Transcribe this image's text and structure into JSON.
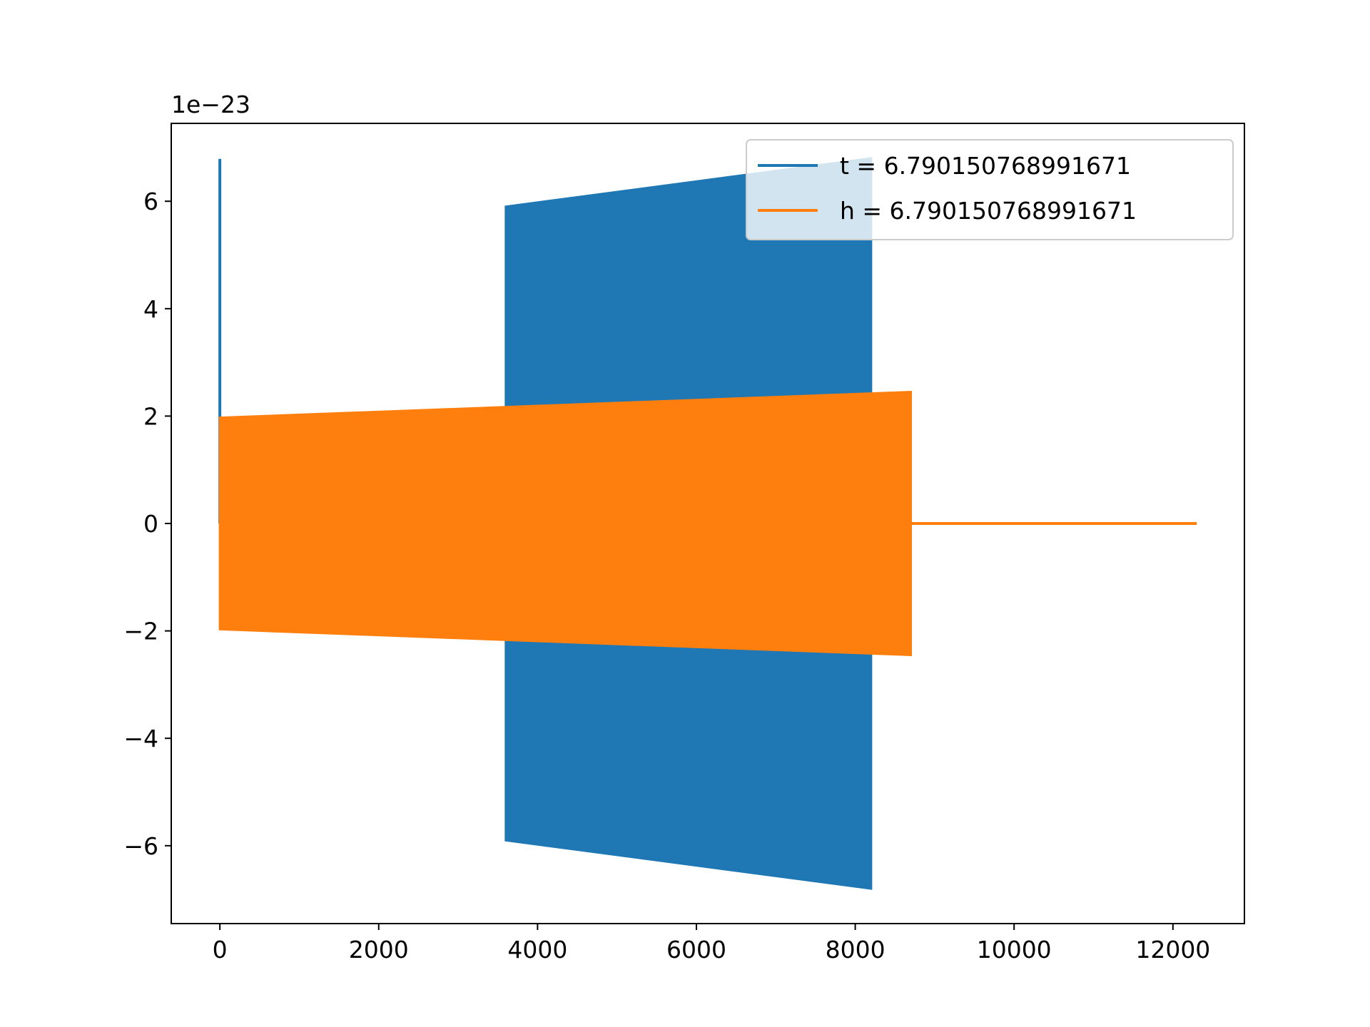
{
  "chart_data": {
    "type": "line",
    "title": "",
    "xlabel": "",
    "ylabel": "",
    "offset_text": "1e−23",
    "xlim": [
      -612,
      12900
    ],
    "ylim": [
      -7.45,
      7.45
    ],
    "xticks": [
      0,
      2000,
      4000,
      6000,
      8000,
      10000,
      12000
    ],
    "xtick_labels": [
      "0",
      "2000",
      "4000",
      "6000",
      "8000",
      "10000",
      "12000"
    ],
    "yticks": [
      -6,
      -4,
      -2,
      0,
      2,
      4,
      6
    ],
    "ytick_labels": [
      "−6",
      "−4",
      "−2",
      "0",
      "2",
      "4",
      "6"
    ],
    "grid": false,
    "legend": {
      "placement": "upper right"
    },
    "series": [
      {
        "name": "t = 6.790150768991671",
        "color": "#1f77b4",
        "spike": {
          "x": 0,
          "y_max": 6.79
        },
        "envelope": {
          "x": [
            3600,
            8200
          ],
          "upper": [
            5.9,
            6.8
          ],
          "lower": [
            -5.9,
            -6.8
          ]
        }
      },
      {
        "name": "h = 6.790150768991671",
        "color": "#ff7f0e",
        "envelope": {
          "x": [
            0,
            8700
          ],
          "upper": [
            1.97,
            2.45
          ],
          "lower": [
            -1.97,
            -2.45
          ]
        },
        "tail": {
          "x": [
            8700,
            12300
          ],
          "y": 0
        }
      }
    ]
  }
}
